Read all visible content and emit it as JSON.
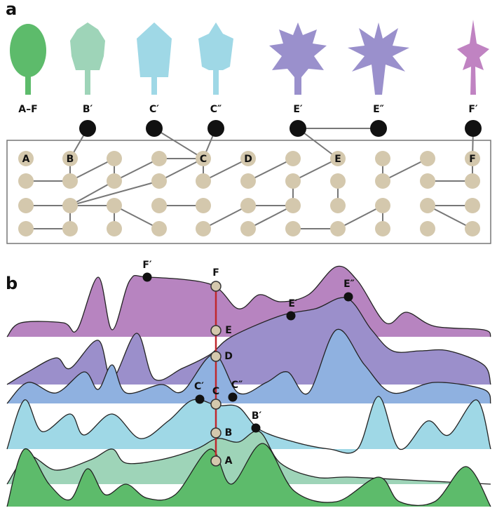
{
  "panel_labels": [
    "a",
    "b"
  ],
  "leaves": [
    "A–F",
    "B′",
    "C′",
    "C″",
    "E′",
    "E″",
    "F′"
  ],
  "network_nodes": [
    "A",
    "B",
    "C",
    "D",
    "E",
    "F"
  ],
  "landscape": {
    "optima": [
      "F",
      "E",
      "D",
      "C",
      "B",
      "A"
    ],
    "variants": [
      "F′",
      "E′",
      "E″",
      "C′",
      "C″",
      "B′"
    ]
  }
}
